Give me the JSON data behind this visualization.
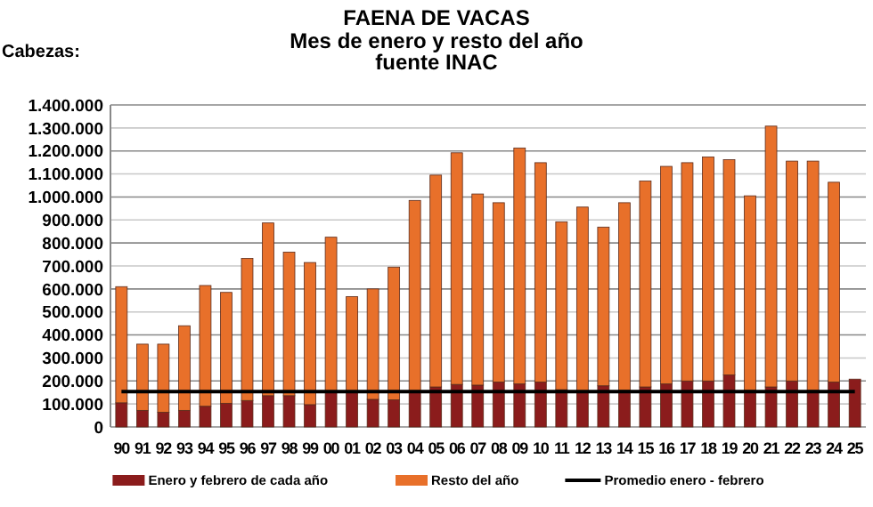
{
  "chart_data": {
    "type": "bar",
    "title": "FAENA  DE VACAS",
    "subtitle": "Mes de enero y resto del año\nfuente INAC",
    "ylabel": "Cabezas:",
    "categories": [
      "90",
      "91",
      "92",
      "93",
      "94",
      "95",
      "96",
      "97",
      "98",
      "99",
      "00",
      "01",
      "02",
      "03",
      "04",
      "05",
      "06",
      "07",
      "08",
      "09",
      "10",
      "11",
      "12",
      "13",
      "14",
      "15",
      "16",
      "17",
      "18",
      "19",
      "20",
      "21",
      "22",
      "23",
      "24",
      "25"
    ],
    "stacked": true,
    "grid": "y",
    "legend": "bottom",
    "ylim": [
      0,
      1400000
    ],
    "yticks": [
      {
        "value": 0,
        "label": "0"
      },
      {
        "value": 100000,
        "label": "100.000"
      },
      {
        "value": 200000,
        "label": "200.000"
      },
      {
        "value": 300000,
        "label": "300.000"
      },
      {
        "value": 400000,
        "label": "400.000"
      },
      {
        "value": 500000,
        "label": "500.000"
      },
      {
        "value": 600000,
        "label": "600.000"
      },
      {
        "value": 700000,
        "label": "700.000"
      },
      {
        "value": 800000,
        "label": "800.000"
      },
      {
        "value": 900000,
        "label": "900.000"
      },
      {
        "value": 1000000,
        "label": "1.000.000"
      },
      {
        "value": 1100000,
        "label": "1.100.000"
      },
      {
        "value": 1200000,
        "label": "1.200.000"
      },
      {
        "value": 1300000,
        "label": "1.300.000"
      },
      {
        "value": 1400000,
        "label": "1.400.000"
      }
    ],
    "series": [
      {
        "name": "Enero y febrero de cada año",
        "color": "#8b1c1c",
        "values": [
          105000,
          72000,
          64000,
          72000,
          90000,
          103000,
          115000,
          136000,
          136000,
          97000,
          154000,
          149000,
          120000,
          118000,
          149000,
          174000,
          185000,
          182000,
          195000,
          187000,
          195000,
          162000,
          154000,
          179000,
          159000,
          174000,
          187000,
          200000,
          200000,
          226000,
          159000,
          174000,
          200000,
          159000,
          195000,
          208000
        ]
      },
      {
        "name": "Resto del año",
        "color": "#e8702a",
        "values": [
          505000,
          288000,
          296000,
          368000,
          525000,
          482000,
          618000,
          751000,
          624000,
          618000,
          671000,
          418000,
          480000,
          577000,
          836000,
          921000,
          1007000,
          831000,
          780000,
          1026000,
          954000,
          730000,
          802000,
          690000,
          816000,
          895000,
          946000,
          949000,
          974000,
          936000,
          846000,
          1134000,
          956000,
          997000,
          869000,
          null
        ]
      },
      {
        "name": "Promedio enero - febrero",
        "type": "line",
        "color": "#000000",
        "values": [
          154000,
          154000,
          154000,
          154000,
          154000,
          154000,
          154000,
          154000,
          154000,
          154000,
          154000,
          154000,
          154000,
          154000,
          154000,
          154000,
          154000,
          154000,
          154000,
          154000,
          154000,
          154000,
          154000,
          154000,
          154000,
          154000,
          154000,
          154000,
          154000,
          154000,
          154000,
          154000,
          154000,
          154000,
          154000,
          154000
        ]
      }
    ]
  }
}
